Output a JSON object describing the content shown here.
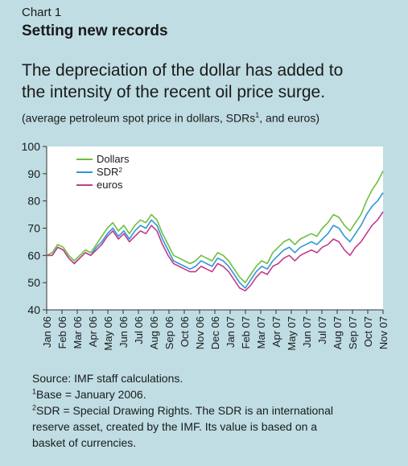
{
  "header": {
    "chart_number": "Chart 1",
    "title": "Setting new records",
    "subtitle_line1": "The depreciation of the dollar has added to",
    "subtitle_line2": "the intensity of the recent oil price surge.",
    "units_before": "(average petroleum spot price in dollars, SDRs",
    "units_sup": "1",
    "units_after": ", and euros)"
  },
  "footer": {
    "source": "Source: IMF staff calculations.",
    "note1_sup": "1",
    "note1": "Base = January 2006.",
    "note2_sup": "2",
    "note2_line1": "SDR = Special Drawing Rights. The SDR is an international",
    "note2_line2": "reserve asset, created by the IMF. Its value is based on a",
    "note2_line3": "basket of currencies."
  },
  "chart_data": {
    "type": "line",
    "ylim": [
      40,
      100
    ],
    "yticks": [
      40,
      50,
      60,
      70,
      80,
      90,
      100
    ],
    "x_tick_labels": [
      "Jan 06",
      "Feb 06",
      "Mar 06",
      "Apr 06",
      "May 06",
      "Jun 06",
      "Jul 06",
      "Aug 06",
      "Sep 06",
      "Oct 06",
      "Nov 06",
      "Dec 06",
      "Jan 07",
      "Feb 07",
      "Mar 07",
      "Apr 07",
      "May 07",
      "Jun 07",
      "Jul 07",
      "Aug 07",
      "Sep 07",
      "Oct 07",
      "Nov 07"
    ],
    "grid": false,
    "legend_position": "top-left",
    "series": [
      {
        "name": "Dollars",
        "sup": "",
        "color": "#6cbf3f",
        "values": [
          60,
          61,
          64,
          63,
          60,
          58,
          60,
          62,
          61,
          64,
          67,
          70,
          72,
          69,
          71,
          68,
          71,
          73,
          72,
          75,
          73,
          68,
          64,
          60,
          59,
          58,
          57,
          58,
          60,
          59,
          58,
          61,
          60,
          58,
          55,
          52,
          50,
          53,
          56,
          58,
          57,
          61,
          63,
          65,
          66,
          64,
          66,
          67,
          68,
          67,
          70,
          72,
          75,
          74,
          71,
          69,
          72,
          75,
          80,
          84,
          87,
          91
        ]
      },
      {
        "name": "SDR",
        "sup": "2",
        "color": "#2f96d8",
        "values": [
          60,
          60,
          63,
          62,
          59,
          57,
          59,
          61,
          60,
          63,
          65,
          68,
          70,
          67,
          69,
          66,
          69,
          71,
          70,
          73,
          71,
          66,
          62,
          58,
          57,
          56,
          55,
          56,
          58,
          57,
          56,
          59,
          58,
          56,
          53,
          50,
          48,
          51,
          54,
          56,
          55,
          58,
          60,
          62,
          63,
          61,
          63,
          64,
          65,
          64,
          66,
          68,
          71,
          70,
          67,
          65,
          68,
          71,
          75,
          78,
          80,
          83
        ]
      },
      {
        "name": "euros",
        "sup": "",
        "color": "#c23b8a",
        "values": [
          60,
          60,
          63,
          62,
          59,
          57,
          59,
          61,
          60,
          62,
          64,
          67,
          69,
          66,
          68,
          65,
          67,
          69,
          68,
          71,
          69,
          64,
          60,
          57,
          56,
          55,
          54,
          54,
          56,
          55,
          54,
          57,
          56,
          54,
          51,
          48,
          47,
          49,
          52,
          54,
          53,
          56,
          57,
          59,
          60,
          58,
          60,
          61,
          62,
          61,
          63,
          64,
          66,
          65,
          62,
          60,
          63,
          65,
          68,
          71,
          73,
          76
        ]
      }
    ]
  }
}
